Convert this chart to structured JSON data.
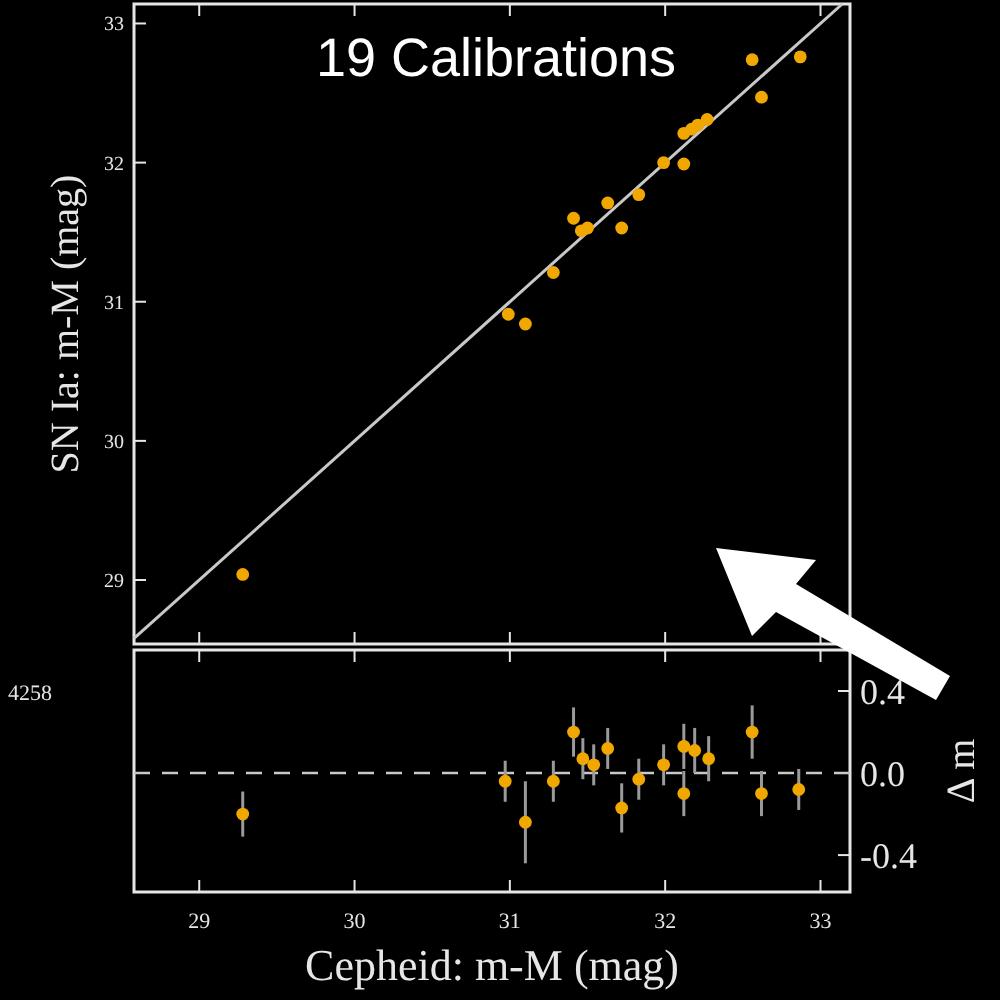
{
  "chart_data": [
    {
      "type": "scatter",
      "title": "19 Calibrations",
      "ylabel": "SN Ia: m-M (mag)",
      "xlim": [
        28.58,
        33.19
      ],
      "ylim": [
        28.54,
        33.14
      ],
      "xticks": [
        {
          "value": 29,
          "label": null
        },
        {
          "value": 30,
          "label": null
        },
        {
          "value": 31,
          "label": null
        },
        {
          "value": 32,
          "label": null
        },
        {
          "value": 33,
          "label": null
        }
      ],
      "yticks": [
        29,
        30,
        31,
        32,
        33
      ],
      "tick_labels": "y",
      "grid": false,
      "annotations": [
        "4258"
      ],
      "series": [
        {
          "type": "line",
          "color": "#c8c8c8",
          "x": [
            28.58,
            33.14
          ],
          "values": [
            28.58,
            33.14
          ]
        },
        {
          "marker": "circle",
          "color": "#f0a800",
          "x": [
            29.28,
            30.99,
            31.1,
            31.28,
            31.41,
            31.46,
            31.5,
            31.63,
            31.72,
            31.83,
            31.99,
            32.12,
            32.12,
            32.17,
            32.21,
            32.27,
            32.62,
            32.56,
            32.87
          ],
          "values": [
            29.04,
            30.91,
            30.84,
            31.21,
            31.6,
            31.51,
            31.53,
            31.71,
            31.53,
            31.77,
            32.0,
            31.99,
            32.21,
            32.24,
            32.27,
            32.31,
            32.47,
            32.74,
            32.76
          ]
        }
      ]
    },
    {
      "type": "scatter",
      "xlabel": "Cepheid: m-M (mag)",
      "ylabel": "Δ m",
      "xlim": [
        28.58,
        33.19
      ],
      "ylim": [
        -0.58,
        0.6
      ],
      "xticks": [
        29,
        30,
        31,
        32,
        33
      ],
      "yticks": [
        {
          "value": 0.4,
          "label": "0.4"
        },
        {
          "value": 0,
          "label": "0.0"
        },
        {
          "value": -0.4,
          "label": "-0.4"
        }
      ],
      "grid": false,
      "marker": "circle",
      "ref_lines": [
        {
          "axis": "y",
          "value": 0,
          "color": "#c8c8c8",
          "line_style": "dashed"
        }
      ],
      "series": [
        {
          "color": "#f0a800",
          "x": [
            29.28,
            30.97,
            31.1,
            31.28,
            31.41,
            31.47,
            31.54,
            31.63,
            31.72,
            31.83,
            31.99,
            32.12,
            32.12,
            32.19,
            32.28,
            32.56,
            32.62,
            32.86
          ],
          "values": [
            -0.2,
            -0.04,
            -0.24,
            -0.04,
            0.2,
            0.07,
            0.04,
            0.12,
            -0.17,
            -0.03,
            0.04,
            0.13,
            -0.1,
            0.11,
            0.07,
            0.2,
            -0.1,
            -0.08
          ],
          "errors": [
            0.11,
            0.1,
            0.2,
            0.1,
            0.12,
            0.1,
            0.1,
            0.1,
            0.12,
            0.1,
            0.1,
            0.11,
            0.11,
            0.11,
            0.11,
            0.13,
            0.11,
            0.1
          ]
        }
      ]
    }
  ]
}
